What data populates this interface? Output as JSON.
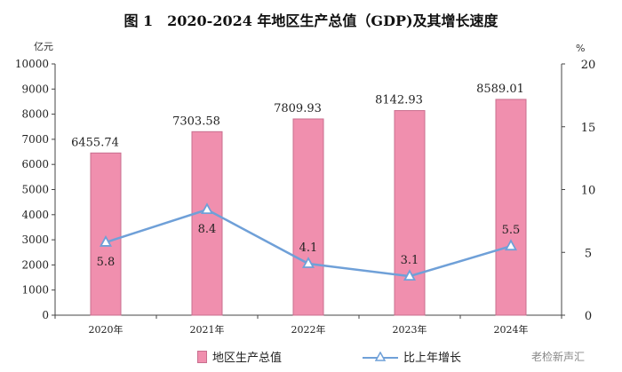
{
  "chart_data": {
    "type": "bar",
    "title": "图 1　2020-2024 年地区生产总值（GDP)及其增长速度",
    "categories": [
      "2020年",
      "2021年",
      "2022年",
      "2023年",
      "2024年"
    ],
    "series": [
      {
        "name": "地区生产总值",
        "type": "bar",
        "axis": "left",
        "values": [
          6455.74,
          7303.58,
          7809.93,
          8142.93,
          8589.01
        ],
        "labels": [
          "6455.74",
          "7303.58",
          "7809.93",
          "8142.93",
          "8589.01"
        ],
        "color": "#f08fae"
      },
      {
        "name": "比上年增长",
        "type": "line",
        "axis": "right",
        "values": [
          5.8,
          8.4,
          4.1,
          3.1,
          5.5
        ],
        "labels": [
          "5.8",
          "8.4",
          "4.1",
          "3.1",
          "5.5"
        ],
        "color": "#6fa0d8"
      }
    ],
    "y_left": {
      "unit": "亿元",
      "range": [
        0,
        10000
      ],
      "ticks": [
        0,
        1000,
        2000,
        3000,
        4000,
        5000,
        6000,
        7000,
        8000,
        9000,
        10000
      ]
    },
    "y_right": {
      "unit": "%",
      "range": [
        0,
        20
      ],
      "ticks": [
        0,
        5,
        10,
        15,
        20
      ]
    },
    "grid": false,
    "legend_position": "bottom"
  },
  "watermark": "老检新声汇"
}
